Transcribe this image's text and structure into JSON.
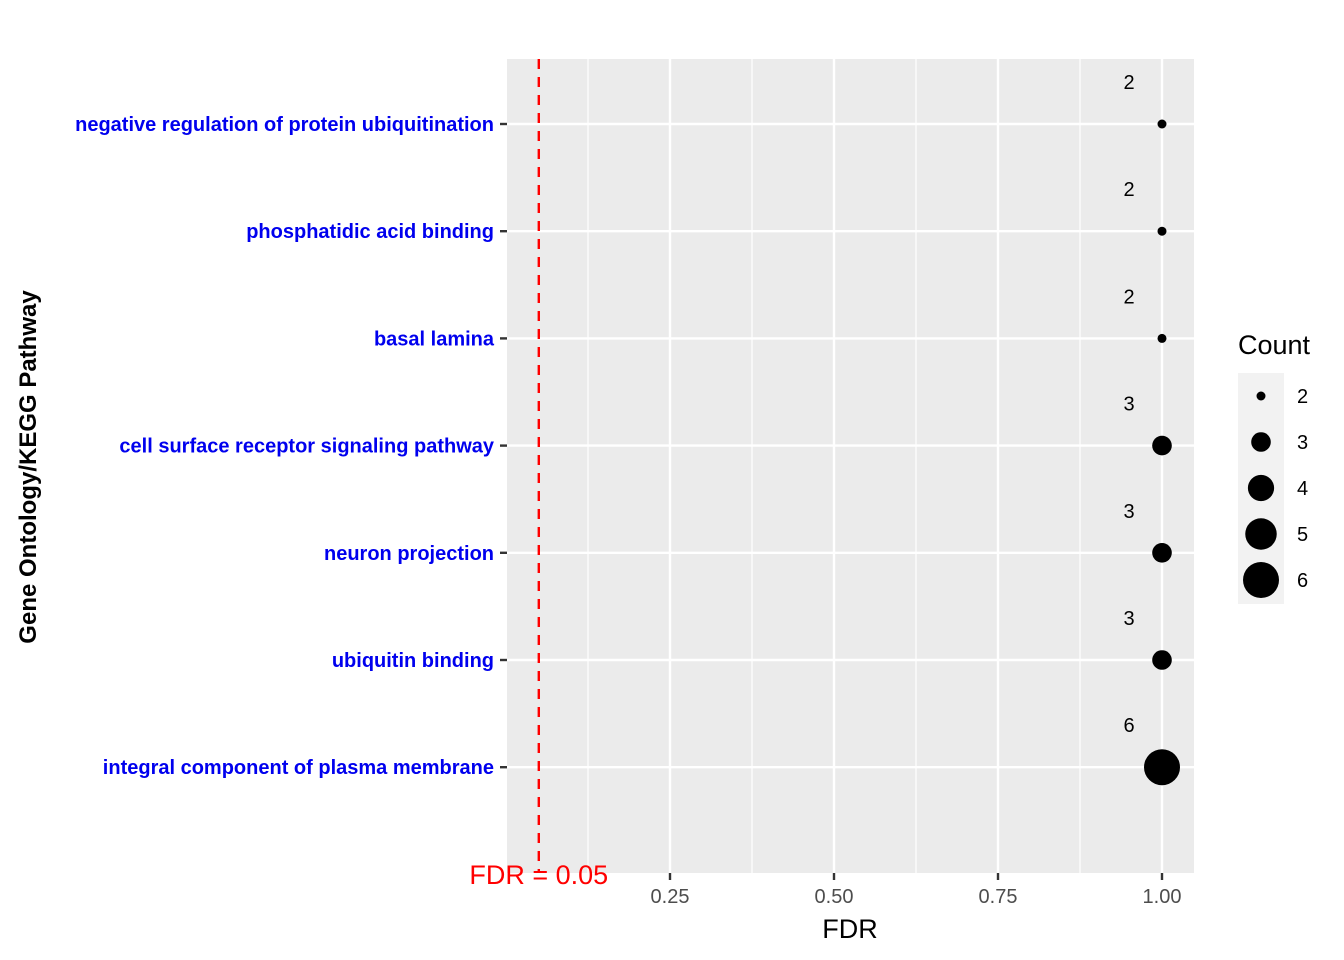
{
  "chart_data": {
    "type": "scatter",
    "xlabel": "FDR",
    "ylabel": "Gene Ontology/KEGG Pathway",
    "xlim": [
      0.0,
      1.095
    ],
    "x_ticks": [
      0.25,
      0.5,
      0.75,
      1.0
    ],
    "x_tick_labels": [
      "0.25",
      "0.50",
      "0.75",
      "1.00"
    ],
    "grid": true,
    "categories": [
      "negative regulation of protein ubiquitination",
      "phosphatidic acid binding",
      "basal lamina",
      "cell surface receptor signaling pathway",
      "neuron projection",
      "ubiquitin binding",
      "integral component of plasma membrane"
    ],
    "x": [
      1.0,
      1.0,
      1.0,
      1.0,
      1.0,
      1.0,
      1.0
    ],
    "count": [
      2,
      2,
      2,
      3,
      3,
      3,
      6
    ],
    "data_labels": [
      "2",
      "2",
      "2",
      "3",
      "3",
      "3",
      "6"
    ],
    "threshold": {
      "value": 0.05,
      "label": "FDR = 0.05",
      "color": "#ff0000"
    },
    "category_label_color": "#0000ee",
    "point_color": "#000000",
    "legend": {
      "title": "Count",
      "position": "right",
      "values": [
        2,
        3,
        4,
        5,
        6
      ],
      "labels": [
        "2",
        "3",
        "4",
        "5",
        "6"
      ]
    }
  }
}
